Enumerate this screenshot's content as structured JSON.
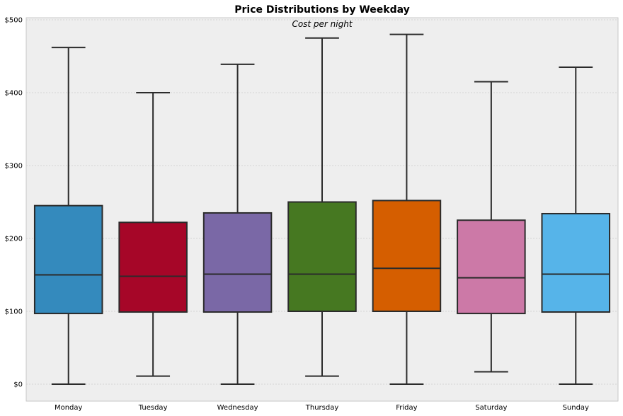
{
  "chart_data": {
    "type": "box",
    "title": "Price Distributions by Weekday",
    "subtitle": "Cost per night",
    "xlabel": "",
    "ylabel": "",
    "categories": [
      "Monday",
      "Tuesday",
      "Wednesday",
      "Thursday",
      "Friday",
      "Saturday",
      "Sunday"
    ],
    "boxes": [
      {
        "category": "Monday",
        "whisker_low": 0,
        "q1": 97,
        "median": 150,
        "q3": 245,
        "whisker_high": 462,
        "color": "#348ABD"
      },
      {
        "category": "Tuesday",
        "whisker_low": 11,
        "q1": 99,
        "median": 148,
        "q3": 222,
        "whisker_high": 400,
        "color": "#A60628"
      },
      {
        "category": "Wednesday",
        "whisker_low": 0,
        "q1": 99,
        "median": 151,
        "q3": 235,
        "whisker_high": 439,
        "color": "#7A68A6"
      },
      {
        "category": "Thursday",
        "whisker_low": 11,
        "q1": 100,
        "median": 151,
        "q3": 250,
        "whisker_high": 475,
        "color": "#467821"
      },
      {
        "category": "Friday",
        "whisker_low": 0,
        "q1": 100,
        "median": 159,
        "q3": 252,
        "whisker_high": 480,
        "color": "#D55E00"
      },
      {
        "category": "Saturday",
        "whisker_low": 17,
        "q1": 97,
        "median": 146,
        "q3": 225,
        "whisker_high": 415,
        "color": "#CC79A7"
      },
      {
        "category": "Sunday",
        "whisker_low": 0,
        "q1": 99,
        "median": 151,
        "q3": 234,
        "whisker_high": 435,
        "color": "#56B4E9"
      }
    ],
    "yticks": [
      0,
      100,
      200,
      300,
      400,
      500
    ],
    "ytick_labels": [
      "$0",
      "$100",
      "$200",
      "$300",
      "$400",
      "$500"
    ],
    "ylim": [
      -22,
      503
    ],
    "grid": true,
    "colors": {
      "plot_background": "#EEEEEE",
      "grid": "#CCCCCC",
      "box_edge": "#2B2B2B"
    }
  }
}
